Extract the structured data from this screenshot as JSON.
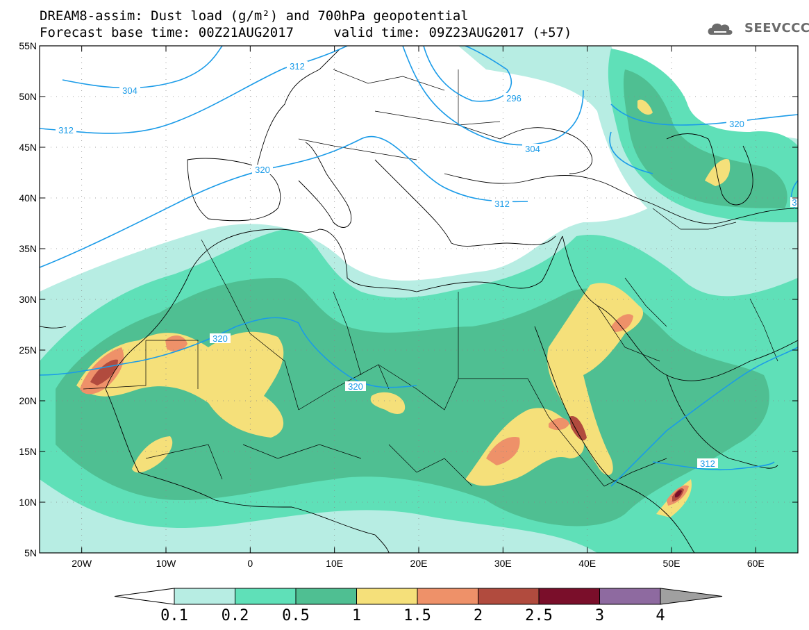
{
  "title": {
    "line1": "DREAM8-assim: Dust load (g/m²) and 700hPa geopotential",
    "line2": "Forecast base time: 00Z21AUG2017     valid time: 09Z23AUG2017 (+57)"
  },
  "logo": {
    "text": "SEEVCCC",
    "icon": "cloud-logo-icon"
  },
  "map": {
    "lon_range": [
      -25,
      65
    ],
    "lat_range": [
      5,
      55
    ],
    "lat_ticks": [
      "55N",
      "50N",
      "45N",
      "40N",
      "35N",
      "30N",
      "25N",
      "20N",
      "15N",
      "10N",
      "5N"
    ],
    "lon_ticks": [
      "20W",
      "10W",
      "0",
      "10E",
      "20E",
      "30E",
      "40E",
      "50E",
      "60E"
    ],
    "grid": "dotted"
  },
  "contours": {
    "labels": [
      "304",
      "312",
      "312",
      "296",
      "304",
      "320",
      "320",
      "312",
      "320",
      "320",
      "312",
      "3"
    ]
  },
  "colorbar": {
    "ticks": [
      "0.1",
      "0.2",
      "0.5",
      "1",
      "1.5",
      "2",
      "2.5",
      "3",
      "4"
    ],
    "colors": [
      "#b7ede3",
      "#5fe0b8",
      "#4fbf92",
      "#f5e07a",
      "#ee9169",
      "#b14b3e",
      "#7a0e2a",
      "#8e6aa0",
      "#a0a0a0"
    ],
    "under_color": "#ffffff"
  }
}
